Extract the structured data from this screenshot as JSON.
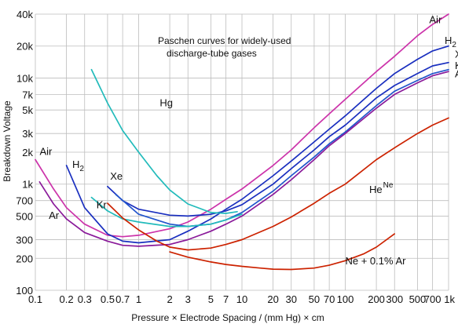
{
  "chart_data": {
    "type": "line",
    "title": "Paschen curves for widely-used discharge-tube gases",
    "title_lines": [
      "Paschen curves for widely-used",
      "discharge-tube gases"
    ],
    "xlabel": "Pressure × Electrode Spacing  /  (mm Hg) × cm",
    "ylabel": "Breakdown Voltage",
    "x_scale": "log",
    "y_scale": "log",
    "xlim": [
      0.1,
      1000
    ],
    "ylim": [
      100,
      40000
    ],
    "grid": true,
    "x_ticks": [
      {
        "value": 0.1,
        "label": "0.1"
      },
      {
        "value": 0.2,
        "label": "0.2"
      },
      {
        "value": 0.3,
        "label": "0.3"
      },
      {
        "value": 0.5,
        "label": "0.5"
      },
      {
        "value": 0.7,
        "label": "0.7"
      },
      {
        "value": 1,
        "label": "1"
      },
      {
        "value": 2,
        "label": "2"
      },
      {
        "value": 3,
        "label": "3"
      },
      {
        "value": 5,
        "label": "5"
      },
      {
        "value": 7,
        "label": "7"
      },
      {
        "value": 10,
        "label": "10"
      },
      {
        "value": 20,
        "label": "20"
      },
      {
        "value": 30,
        "label": "30"
      },
      {
        "value": 50,
        "label": "50"
      },
      {
        "value": 70,
        "label": "70"
      },
      {
        "value": 100,
        "label": "100"
      },
      {
        "value": 200,
        "label": "200"
      },
      {
        "value": 300,
        "label": "300"
      },
      {
        "value": 500,
        "label": "500"
      },
      {
        "value": 700,
        "label": "700"
      },
      {
        "value": 1000,
        "label": "1k"
      }
    ],
    "y_ticks": [
      {
        "value": 100,
        "label": "100"
      },
      {
        "value": 200,
        "label": "200"
      },
      {
        "value": 300,
        "label": "300"
      },
      {
        "value": 500,
        "label": "500"
      },
      {
        "value": 700,
        "label": "700"
      },
      {
        "value": 1000,
        "label": "1k"
      },
      {
        "value": 2000,
        "label": "2k"
      },
      {
        "value": 3000,
        "label": "3k"
      },
      {
        "value": 5000,
        "label": "5k"
      },
      {
        "value": 7000,
        "label": "7k"
      },
      {
        "value": 10000,
        "label": "10k"
      },
      {
        "value": 20000,
        "label": "20k"
      },
      {
        "value": 40000,
        "label": "40k"
      }
    ],
    "series": [
      {
        "key": "air",
        "name": "Air",
        "color": "#cc33aa",
        "points": [
          [
            0.1,
            1700
          ],
          [
            0.15,
            900
          ],
          [
            0.2,
            600
          ],
          [
            0.3,
            420
          ],
          [
            0.5,
            330
          ],
          [
            0.7,
            320
          ],
          [
            1,
            330
          ],
          [
            2,
            380
          ],
          [
            3,
            440
          ],
          [
            5,
            580
          ],
          [
            7,
            720
          ],
          [
            10,
            900
          ],
          [
            20,
            1500
          ],
          [
            30,
            2100
          ],
          [
            50,
            3400
          ],
          [
            70,
            4600
          ],
          [
            100,
            6300
          ],
          [
            200,
            11500
          ],
          [
            300,
            16000
          ],
          [
            500,
            25000
          ],
          [
            700,
            32000
          ],
          [
            1000,
            40000
          ]
        ]
      },
      {
        "key": "h2",
        "name_main": "H",
        "name_sub": "2",
        "color": "#1a2fbf",
        "points": [
          [
            0.2,
            1500
          ],
          [
            0.3,
            600
          ],
          [
            0.5,
            340
          ],
          [
            0.7,
            290
          ],
          [
            1,
            280
          ],
          [
            2,
            300
          ],
          [
            3,
            360
          ],
          [
            5,
            470
          ],
          [
            7,
            580
          ],
          [
            10,
            720
          ],
          [
            20,
            1200
          ],
          [
            30,
            1650
          ],
          [
            50,
            2500
          ],
          [
            70,
            3300
          ],
          [
            100,
            4400
          ],
          [
            200,
            8000
          ],
          [
            300,
            11000
          ],
          [
            500,
            15000
          ],
          [
            700,
            18000
          ],
          [
            1000,
            20000
          ]
        ]
      },
      {
        "key": "xe",
        "name": "Xe",
        "color": "#1a2fbf",
        "points": [
          [
            0.5,
            950
          ],
          [
            0.7,
            700
          ],
          [
            1,
            580
          ],
          [
            2,
            510
          ],
          [
            3,
            500
          ],
          [
            5,
            520
          ],
          [
            7,
            560
          ],
          [
            10,
            640
          ],
          [
            20,
            1000
          ],
          [
            30,
            1400
          ],
          [
            50,
            2100
          ],
          [
            70,
            2800
          ],
          [
            100,
            3600
          ],
          [
            200,
            6500
          ],
          [
            300,
            8500
          ],
          [
            500,
            11000
          ],
          [
            700,
            13000
          ],
          [
            1000,
            14000
          ]
        ]
      },
      {
        "key": "kr",
        "name": "Kr",
        "color": "#2255cc",
        "points": [
          [
            0.6,
            800
          ],
          [
            1,
            520
          ],
          [
            2,
            420
          ],
          [
            3,
            400
          ],
          [
            5,
            420
          ],
          [
            7,
            460
          ],
          [
            10,
            540
          ],
          [
            20,
            860
          ],
          [
            30,
            1200
          ],
          [
            50,
            1800
          ],
          [
            70,
            2400
          ],
          [
            100,
            3100
          ],
          [
            200,
            5500
          ],
          [
            300,
            7500
          ],
          [
            500,
            9500
          ],
          [
            700,
            11000
          ],
          [
            1000,
            12000
          ]
        ]
      },
      {
        "key": "ar",
        "name": "Ar",
        "color": "#8a1a9a",
        "points": [
          [
            0.11,
            1050
          ],
          [
            0.15,
            650
          ],
          [
            0.2,
            470
          ],
          [
            0.3,
            350
          ],
          [
            0.5,
            290
          ],
          [
            0.7,
            265
          ],
          [
            1,
            260
          ],
          [
            2,
            270
          ],
          [
            3,
            300
          ],
          [
            5,
            360
          ],
          [
            7,
            420
          ],
          [
            10,
            500
          ],
          [
            20,
            800
          ],
          [
            30,
            1100
          ],
          [
            50,
            1700
          ],
          [
            70,
            2300
          ],
          [
            100,
            3000
          ],
          [
            200,
            5200
          ],
          [
            300,
            7000
          ],
          [
            500,
            9000
          ],
          [
            700,
            10500
          ],
          [
            1000,
            11500
          ]
        ]
      },
      {
        "key": "hg",
        "name": "Hg",
        "color": "#22bbbb",
        "points": [
          [
            0.35,
            12000
          ],
          [
            0.5,
            5800
          ],
          [
            0.7,
            3200
          ],
          [
            1,
            2000
          ],
          [
            1.5,
            1200
          ],
          [
            2,
            880
          ],
          [
            3,
            650
          ],
          [
            5,
            540
          ],
          [
            7,
            530
          ],
          [
            9,
            550
          ]
        ]
      },
      {
        "key": "kr_low",
        "name": "",
        "color": "#22bbbb",
        "points": [
          [
            0.35,
            750
          ],
          [
            0.5,
            560
          ],
          [
            0.7,
            470
          ],
          [
            1,
            440
          ],
          [
            2,
            400
          ],
          [
            3,
            400
          ],
          [
            5,
            420
          ],
          [
            7,
            460
          ],
          [
            10,
            520
          ]
        ]
      },
      {
        "key": "ne",
        "name_main": "He",
        "name_sup": "Ne",
        "color": "#cc2200",
        "points": [
          [
            0.5,
            660
          ],
          [
            0.7,
            480
          ],
          [
            1,
            370
          ],
          [
            1.5,
            290
          ],
          [
            2,
            255
          ],
          [
            3,
            240
          ],
          [
            5,
            250
          ],
          [
            7,
            270
          ],
          [
            10,
            300
          ],
          [
            20,
            400
          ],
          [
            30,
            490
          ],
          [
            50,
            660
          ],
          [
            70,
            820
          ],
          [
            100,
            1000
          ],
          [
            200,
            1700
          ],
          [
            300,
            2200
          ],
          [
            500,
            3000
          ],
          [
            700,
            3600
          ],
          [
            1000,
            4200
          ]
        ]
      },
      {
        "key": "ne_ar",
        "name": "Ne + 0.1% Ar",
        "color": "#cc2200",
        "points": [
          [
            2,
            230
          ],
          [
            3,
            205
          ],
          [
            5,
            185
          ],
          [
            7,
            175
          ],
          [
            10,
            168
          ],
          [
            15,
            162
          ],
          [
            20,
            158
          ],
          [
            30,
            157
          ],
          [
            50,
            162
          ],
          [
            70,
            172
          ],
          [
            100,
            190
          ],
          [
            150,
            220
          ],
          [
            200,
            255
          ],
          [
            300,
            340
          ]
        ]
      }
    ],
    "series_labels": [
      {
        "text": "Air",
        "x": 650,
        "y": 33000
      },
      {
        "text": "Xe",
        "x": 1150,
        "y": 15500
      },
      {
        "text": "Kr",
        "x": 1150,
        "y": 12200
      },
      {
        "text": "Ar",
        "x": 1150,
        "y": 10200
      },
      {
        "text": "Hg",
        "x": 1.6,
        "y": 5400
      },
      {
        "text": "Xe",
        "x": 0.53,
        "y": 1100
      },
      {
        "text": "Kr",
        "x": 0.39,
        "y": 590
      },
      {
        "text": "Air",
        "x": 0.11,
        "y": 1880
      },
      {
        "text": "Ar",
        "x": 0.135,
        "y": 470
      },
      {
        "text": "Ne + 0.1% Ar",
        "x": 100,
        "y": 175
      }
    ]
  }
}
